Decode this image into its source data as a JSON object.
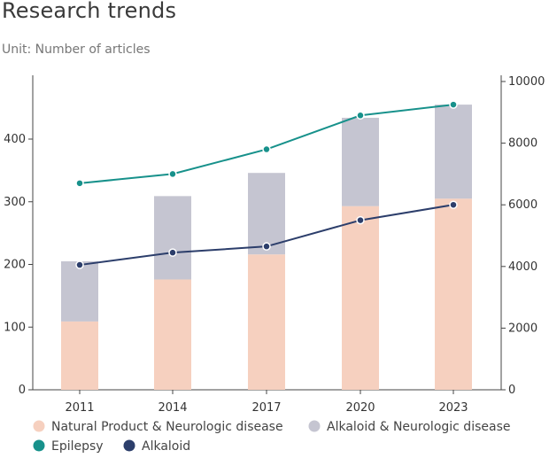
{
  "header": {
    "title": "Research trends",
    "subtitle": "Unit: Number of articles"
  },
  "chart_data": {
    "type": "bar",
    "categories": [
      "2011",
      "2014",
      "2017",
      "2020",
      "2023"
    ],
    "series": [
      {
        "name": "Natural Product & Neurologic disease",
        "kind": "bar-stack",
        "axis": "left",
        "color": "#f6d0bf",
        "values": [
          109,
          176,
          216,
          293,
          305
        ]
      },
      {
        "name": "Alkaloid & Neurologic disease",
        "kind": "bar-stack",
        "axis": "left",
        "color": "#c5c5d1",
        "values": [
          96,
          133,
          130,
          141,
          150
        ]
      },
      {
        "name": "Epilepsy",
        "kind": "line",
        "axis": "right",
        "color": "#17918b",
        "values": [
          6700,
          7000,
          7800,
          8900,
          9250
        ]
      },
      {
        "name": "Alkaloid",
        "kind": "line",
        "axis": "right",
        "color": "#2c3e6b",
        "values": [
          4050,
          4450,
          4650,
          5500,
          6000
        ]
      }
    ],
    "yleft": {
      "ylim": [
        0,
        460
      ],
      "ticks": [
        0,
        100,
        200,
        300,
        400
      ]
    },
    "yright": {
      "ylim": [
        0,
        10000
      ],
      "ticks": [
        0,
        2000,
        4000,
        6000,
        8000,
        10000
      ]
    },
    "grid": false,
    "legend_position": "bottom"
  }
}
